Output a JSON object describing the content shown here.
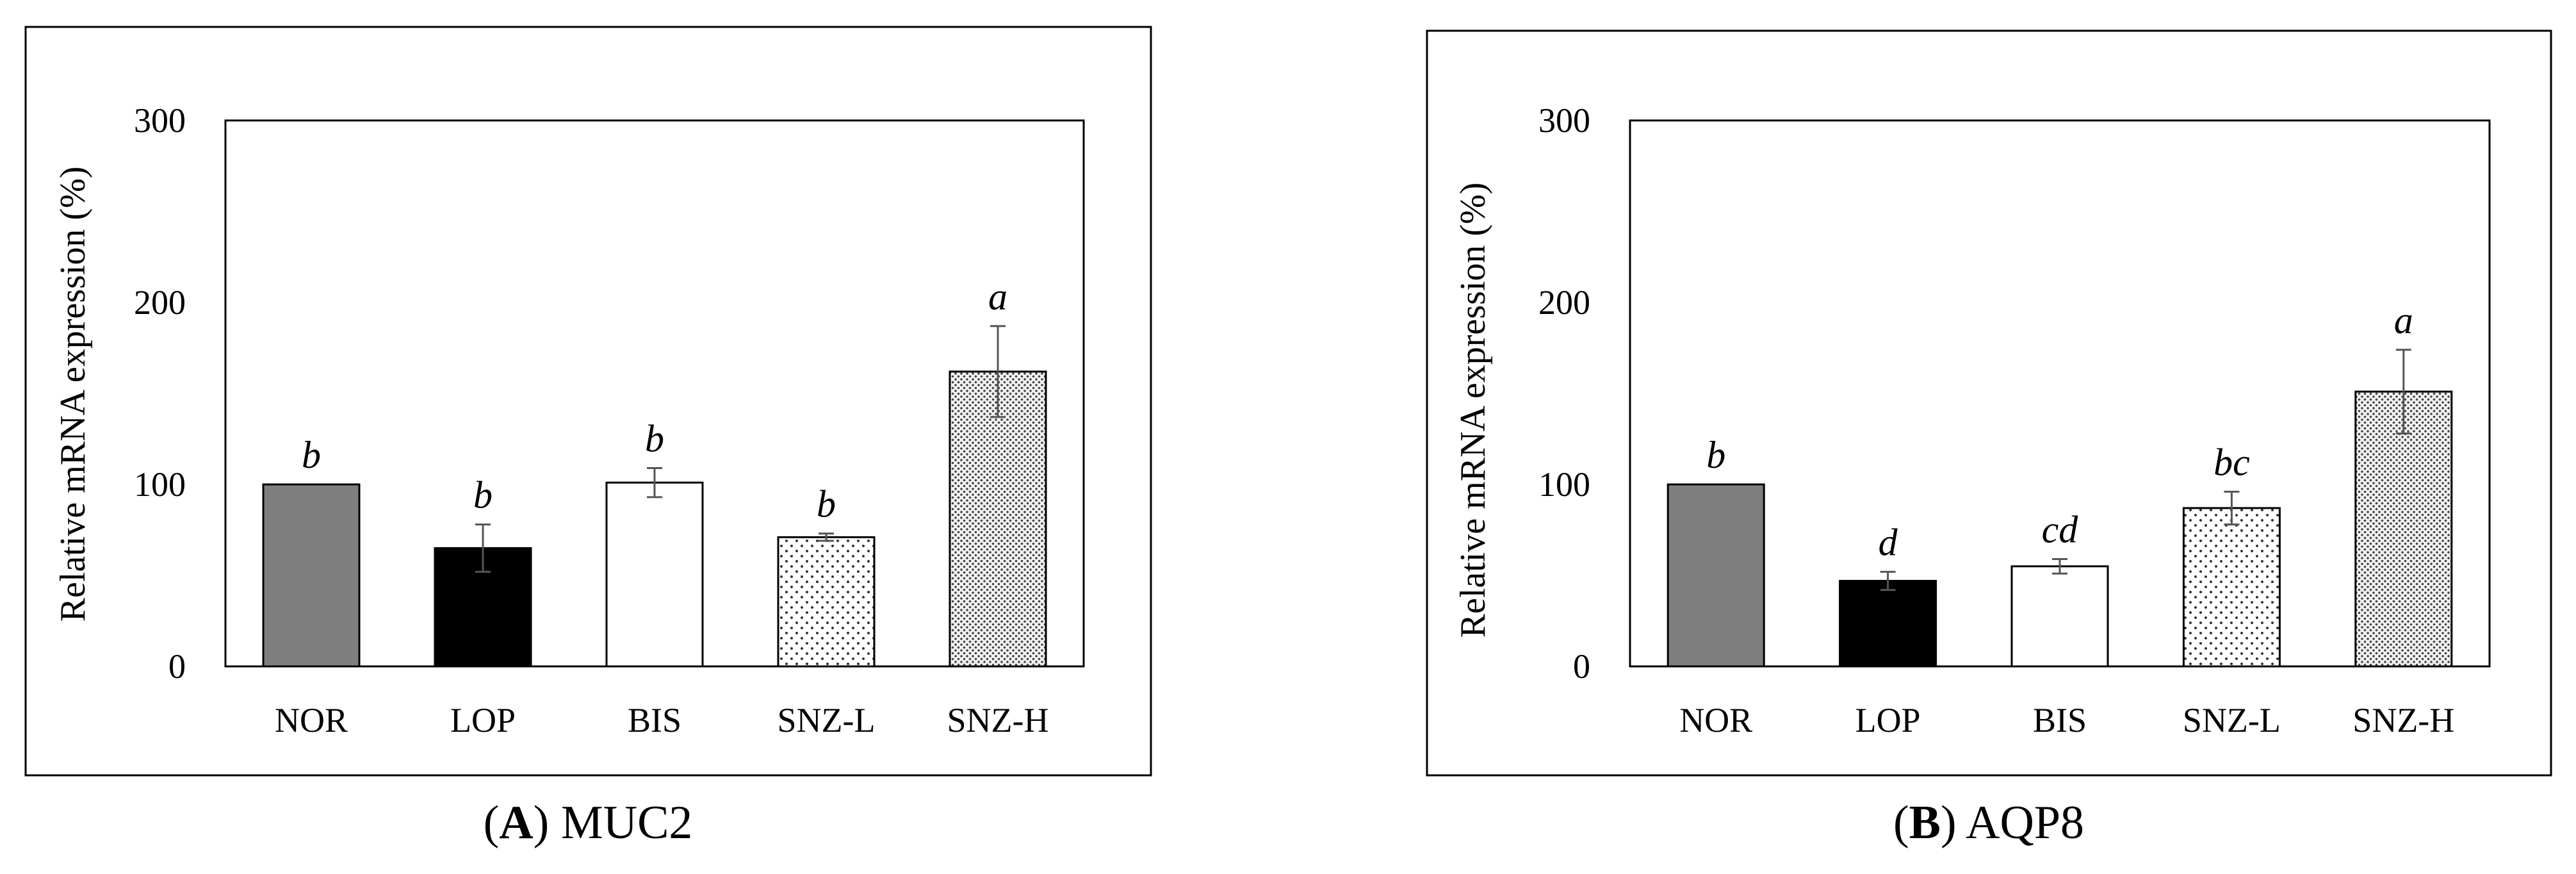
{
  "chart_data": [
    {
      "type": "bar",
      "panel_letter": "A",
      "panel_name": "MUC2",
      "ylabel": "Relative mRNA expression (%)",
      "xlabel": "",
      "ylim": [
        0,
        300
      ],
      "yticks": [
        0,
        100,
        200,
        300
      ],
      "grid": false,
      "categories": [
        "NOR",
        "LOP",
        "BIS",
        "SNZ-L",
        "SNZ-H"
      ],
      "values": [
        100,
        65,
        101,
        71,
        162
      ],
      "errors": [
        0,
        13,
        8,
        2,
        25
      ],
      "significance": [
        "b",
        "b",
        "b",
        "b",
        "a"
      ],
      "fills": [
        "gray-solid",
        "black-solid",
        "white",
        "light-dots",
        "dense-dots"
      ]
    },
    {
      "type": "bar",
      "panel_letter": "B",
      "panel_name": "AQP8",
      "ylabel": "Relative mRNA expression (%)",
      "xlabel": "",
      "ylim": [
        0,
        300
      ],
      "yticks": [
        0,
        100,
        200,
        300
      ],
      "grid": false,
      "categories": [
        "NOR",
        "LOP",
        "BIS",
        "SNZ-L",
        "SNZ-H"
      ],
      "values": [
        100,
        47,
        55,
        87,
        151
      ],
      "errors": [
        0,
        5,
        4,
        9,
        23
      ],
      "significance": [
        "b",
        "d",
        "cd",
        "bc",
        "a"
      ],
      "fills": [
        "gray-solid",
        "black-solid",
        "white",
        "light-dots",
        "dense-dots"
      ]
    }
  ],
  "colors": {
    "nor": "#7f7f7f",
    "lop": "#000000",
    "bis": "#ffffff",
    "dots": "#333333",
    "axis": "#000000",
    "error_bar": "#555555"
  }
}
